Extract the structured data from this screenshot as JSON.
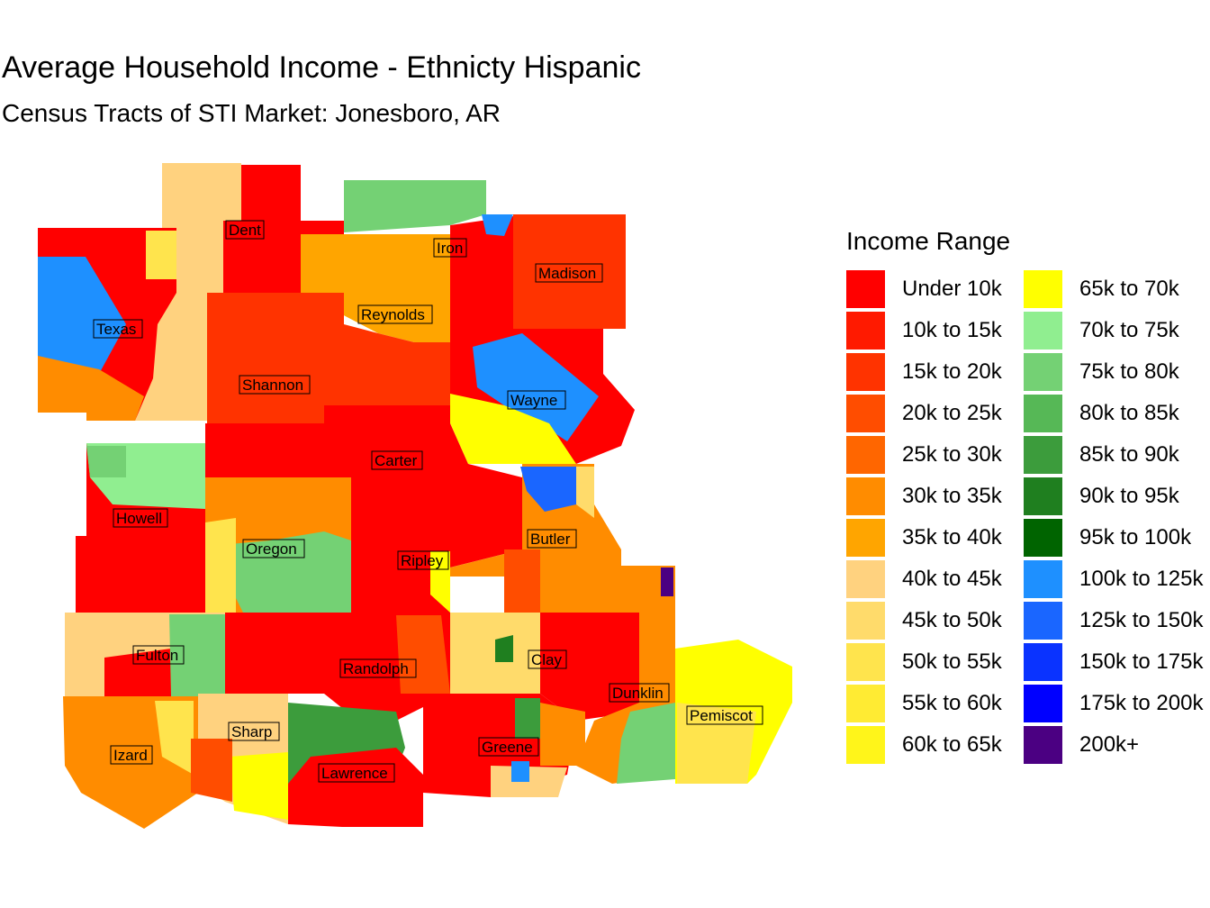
{
  "title": "Average Household Income - Ethnicty Hispanic",
  "subtitle": "Census Tracts of STI Market: Jonesboro, AR",
  "legend": {
    "title": "Income Range",
    "columns": [
      [
        {
          "label": "Under 10k",
          "color": "#ff0000"
        },
        {
          "label": "10k to 15k",
          "color": "#ff1a00"
        },
        {
          "label": "15k to 20k",
          "color": "#ff3300"
        },
        {
          "label": "20k to 25k",
          "color": "#ff4d00"
        },
        {
          "label": "25k to 30k",
          "color": "#ff6600"
        },
        {
          "label": "30k to 35k",
          "color": "#ff8c00"
        },
        {
          "label": "35k to 40k",
          "color": "#ffa500"
        },
        {
          "label": "40k to 45k",
          "color": "#ffd27f"
        },
        {
          "label": "45k to 50k",
          "color": "#ffdb6b"
        },
        {
          "label": "50k to 55k",
          "color": "#ffe44d"
        },
        {
          "label": "55k to 60k",
          "color": "#ffeb33"
        },
        {
          "label": "60k to 65k",
          "color": "#fff51a"
        }
      ],
      [
        {
          "label": "65k to 70k",
          "color": "#ffff00"
        },
        {
          "label": "70k to 75k",
          "color": "#90ee90"
        },
        {
          "label": "75k to 80k",
          "color": "#74d174"
        },
        {
          "label": "80k to 85k",
          "color": "#56b856"
        },
        {
          "label": "85k to 90k",
          "color": "#3c9c3c"
        },
        {
          "label": "90k to 95k",
          "color": "#1f7f1f"
        },
        {
          "label": "95k to 100k",
          "color": "#006400"
        },
        {
          "label": "100k to 125k",
          "color": "#1e90ff"
        },
        {
          "label": "125k to 150k",
          "color": "#1a66ff"
        },
        {
          "label": "150k to 175k",
          "color": "#0a33ff"
        },
        {
          "label": "175k to 200k",
          "color": "#0000ff"
        },
        {
          "label": "200k+",
          "color": "#4b0082"
        }
      ]
    ]
  },
  "counties": [
    {
      "name": "Dent",
      "color": "#ff0000"
    },
    {
      "name": "Iron",
      "color": "#ffa500"
    },
    {
      "name": "Madison",
      "color": "#ff3300"
    },
    {
      "name": "Texas",
      "color": "#ff0000"
    },
    {
      "name": "Reynolds",
      "color": "#ffa500"
    },
    {
      "name": "Shannon",
      "color": "#ff3300"
    },
    {
      "name": "Wayne",
      "color": "#ff0000"
    },
    {
      "name": "Carter",
      "color": "#ff0000"
    },
    {
      "name": "Howell",
      "color": "#ff0000"
    },
    {
      "name": "Oregon",
      "color": "#ff8c00"
    },
    {
      "name": "Ripley",
      "color": "#ff0000"
    },
    {
      "name": "Butler",
      "color": "#ff8c00"
    },
    {
      "name": "Fulton",
      "color": "#ffd27f"
    },
    {
      "name": "Randolph",
      "color": "#ff0000"
    },
    {
      "name": "Clay",
      "color": "#ff0000"
    },
    {
      "name": "Dunklin",
      "color": "#ff8c00"
    },
    {
      "name": "Pemiscot",
      "color": "#ffeb33"
    },
    {
      "name": "Sharp",
      "color": "#ffd27f"
    },
    {
      "name": "Izard",
      "color": "#ff8c00"
    },
    {
      "name": "Greene",
      "color": "#ff0000"
    },
    {
      "name": "Lawrence",
      "color": "#ff0000"
    }
  ]
}
